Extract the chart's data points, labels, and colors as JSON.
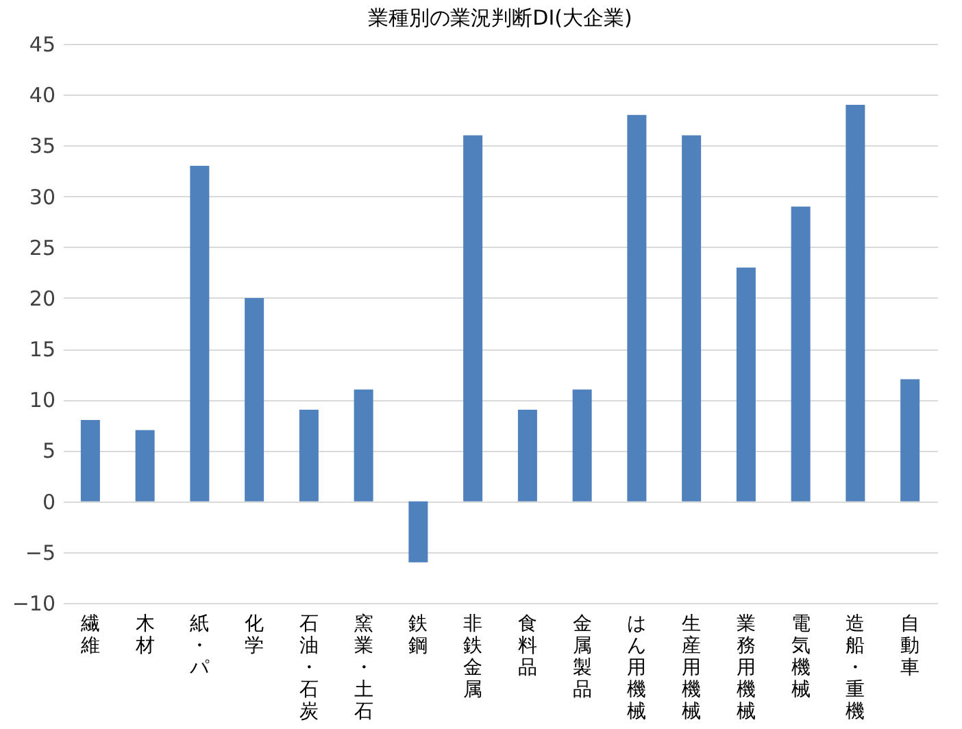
{
  "chart_data": {
    "type": "bar",
    "title": "業種別の業況判断DI(大企業)",
    "categories": [
      "繊維",
      "木材",
      "紙・パ",
      "化学",
      "石油・石炭",
      "窯業・土石",
      "鉄鋼",
      "非鉄金属",
      "食料品",
      "金属製品",
      "はん用機械",
      "生産用機械",
      "業務用機械",
      "電気機械",
      "造船・重機",
      "自動車"
    ],
    "values": [
      8,
      7,
      33,
      20,
      9,
      11,
      -6,
      36,
      9,
      11,
      38,
      36,
      23,
      29,
      39,
      12
    ],
    "color": "#4f81bd",
    "ylim": [
      -10,
      45
    ],
    "yticks": [
      -10,
      -5,
      0,
      5,
      10,
      15,
      20,
      25,
      30,
      35,
      40,
      45
    ],
    "grid": "y"
  }
}
